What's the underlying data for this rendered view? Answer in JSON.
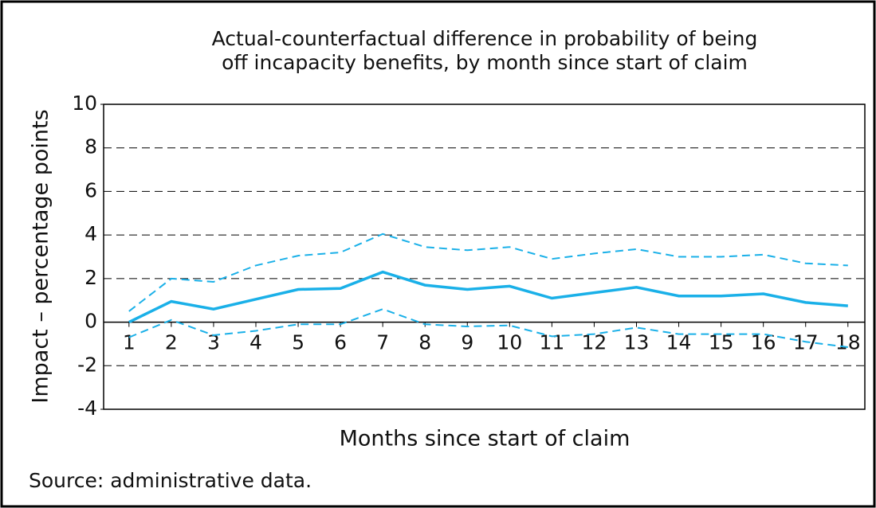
{
  "chart_data": {
    "type": "line",
    "title": [
      "Actual-counterfactual difference in probability of being",
      "off incapacity benefits, by month since start of claim"
    ],
    "xlabel": "Months since start of claim",
    "ylabel": "Impact – percentage points",
    "source": "Source: administrative data.",
    "x": [
      1,
      2,
      3,
      4,
      5,
      6,
      7,
      8,
      9,
      10,
      11,
      12,
      13,
      14,
      15,
      16,
      17,
      18
    ],
    "xlim": [
      0.4,
      18.4
    ],
    "xticks": [
      1,
      2,
      3,
      4,
      5,
      6,
      7,
      8,
      9,
      10,
      11,
      12,
      13,
      14,
      15,
      16,
      17,
      18
    ],
    "ylim": [
      -4,
      10
    ],
    "yticks": [
      -4,
      -2,
      0,
      2,
      4,
      6,
      8,
      10
    ],
    "grid": true,
    "series": [
      {
        "color": "#1ab0e8",
        "style": "solid",
        "values": [
          0,
          0.95,
          0.6,
          1.05,
          1.5,
          1.55,
          2.3,
          1.7,
          1.5,
          1.65,
          1.1,
          1.35,
          1.6,
          1.2,
          1.2,
          1.3,
          0.9,
          0.75
        ]
      },
      {
        "color": "#1ab0e8",
        "style": "dashed",
        "values": [
          0.5,
          2.0,
          1.85,
          2.6,
          3.05,
          3.2,
          4.05,
          3.45,
          3.3,
          3.45,
          2.9,
          3.15,
          3.35,
          3.0,
          3.0,
          3.1,
          2.7,
          2.6
        ]
      },
      {
        "color": "#1ab0e8",
        "style": "dashed",
        "values": [
          -0.7,
          0.1,
          -0.6,
          -0.4,
          -0.1,
          -0.1,
          0.6,
          -0.1,
          -0.2,
          -0.15,
          -0.65,
          -0.55,
          -0.25,
          -0.55,
          -0.55,
          -0.55,
          -0.9,
          -1.15
        ]
      }
    ]
  }
}
